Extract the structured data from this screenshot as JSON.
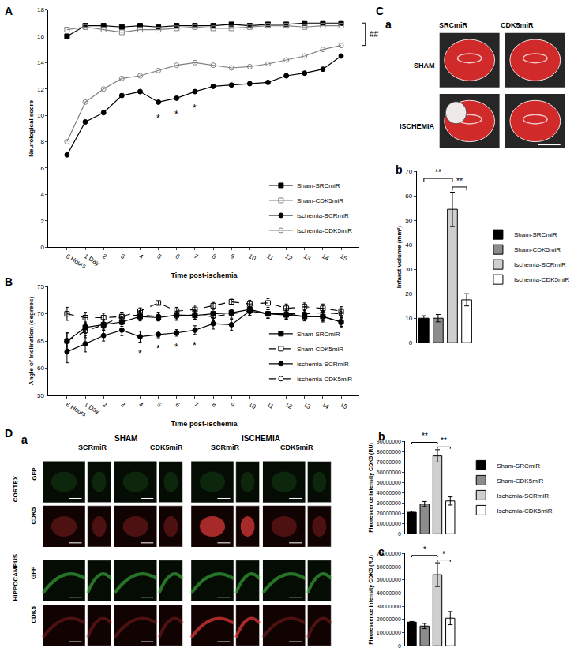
{
  "chart_data": [
    {
      "panel": "A",
      "type": "line",
      "x_label": "Time post-ischemia",
      "y_label": "Neurological score",
      "categories": [
        "6 Hours",
        "1 Day",
        "2",
        "3",
        "4",
        "5",
        "6",
        "7",
        "8",
        "9",
        "10",
        "11",
        "12",
        "13",
        "14",
        "15"
      ],
      "ylim": [
        0,
        18
      ],
      "yticks": [
        0,
        2,
        4,
        6,
        8,
        10,
        12,
        14,
        16,
        18
      ],
      "grid": false,
      "legend": "lower right",
      "series": [
        {
          "name": "Sham-SRCmiR",
          "color": "#000000",
          "marker": "square",
          "line_style": "solid",
          "values": [
            16,
            16.8,
            16.8,
            16.7,
            16.8,
            16.7,
            16.8,
            16.8,
            16.8,
            16.9,
            16.8,
            16.9,
            16.9,
            17,
            17,
            17
          ]
        },
        {
          "name": "Sham-CDK5miR",
          "color": "#808080",
          "marker": "square-open",
          "line_style": "solid",
          "values": [
            16.5,
            16.7,
            16.5,
            16.3,
            16.5,
            16.5,
            16.6,
            16.7,
            16.6,
            16.6,
            16.7,
            16.8,
            16.8,
            16.7,
            16.8,
            16.8
          ]
        },
        {
          "name": "Ischemia-SCRmiR",
          "color": "#000000",
          "marker": "circle",
          "line_style": "solid",
          "values": [
            7,
            9.5,
            10.2,
            11.5,
            11.8,
            11,
            11.3,
            11.8,
            12.2,
            12.3,
            12.4,
            12.5,
            13,
            13.2,
            13.5,
            14.5
          ]
        },
        {
          "name": "Ischemia-CDK5miR",
          "color": "#808080",
          "marker": "circle-open",
          "line_style": "solid",
          "values": [
            8,
            11,
            12,
            12.8,
            13,
            13.4,
            13.8,
            14,
            13.8,
            13.6,
            13.7,
            13.9,
            14.2,
            14.5,
            15,
            15.3
          ]
        }
      ],
      "annotations": [
        {
          "x": "5",
          "text": "*"
        },
        {
          "x": "6",
          "text": "*"
        },
        {
          "x": "7",
          "text": "*"
        }
      ],
      "significance": [
        {
          "from": "Sham-SRCmiR",
          "to": "Ischemia-CDK5miR",
          "text": "##"
        }
      ]
    },
    {
      "panel": "B",
      "type": "line",
      "x_label": "Time post-ischemia",
      "y_label": "Angle of Inclination (degrees)",
      "categories": [
        "6 Hours",
        "1 Day",
        "2",
        "3",
        "4",
        "5",
        "6",
        "7",
        "8",
        "9",
        "10",
        "11",
        "12",
        "13",
        "14",
        "15"
      ],
      "ylim": [
        55,
        75
      ],
      "yticks": [
        55,
        60,
        65,
        70,
        75
      ],
      "grid": false,
      "legend": "lower right",
      "series": [
        {
          "name": "Sham-SRCmiR",
          "color": "#000000",
          "marker": "square",
          "line_style": "solid",
          "values": [
            65,
            67.5,
            68,
            68.5,
            69.5,
            69.3,
            69.8,
            69.7,
            70,
            70.2,
            70.8,
            70,
            69.8,
            69.5,
            69.5,
            68.5
          ],
          "errors": [
            1.5,
            1,
            0.8,
            0.8,
            0.8,
            0.6,
            0.7,
            0.8,
            0.8,
            0.6,
            0.8,
            0.8,
            0.8,
            0.7,
            0.8,
            0.8
          ]
        },
        {
          "name": "Sham-CDK5miR",
          "color": "#000000",
          "marker": "square-open",
          "line_style": "dash",
          "values": [
            70,
            69.3,
            69.3,
            69.5,
            70.5,
            72,
            70.5,
            70.8,
            71.5,
            72.2,
            71.8,
            72,
            71,
            71.3,
            71,
            70.5
          ],
          "errors": [
            1.2,
            1,
            0.8,
            0.8,
            0.6,
            0.3,
            0.7,
            0.8,
            0.6,
            0.5,
            0.7,
            0.8,
            0.8,
            0.7,
            0.8,
            0.8
          ]
        },
        {
          "name": "Ischemia-SCRmiR",
          "color": "#000000",
          "marker": "circle",
          "line_style": "solid",
          "values": [
            63,
            64.5,
            66,
            67,
            65.8,
            66.2,
            66.5,
            67,
            68.2,
            68,
            70.5,
            70,
            70,
            69.5,
            69.5,
            68.5
          ],
          "errors": [
            2,
            1.5,
            1,
            1,
            1,
            0.6,
            0.6,
            0.8,
            1,
            1,
            0.8,
            0.8,
            1,
            0.8,
            1,
            1
          ]
        },
        {
          "name": "Ischemia-CDK5miR",
          "color": "#000000",
          "marker": "circle-open",
          "line_style": "dash",
          "values": [
            65,
            66.8,
            68,
            69.5,
            69.8,
            69.5,
            69.6,
            69.8,
            69.5,
            70,
            70.5,
            70,
            70,
            70,
            70.2,
            70
          ],
          "errors": [
            1.5,
            1.2,
            1,
            0.8,
            0.8,
            0.8,
            0.8,
            0.8,
            0.8,
            0.8,
            0.8,
            0.8,
            0.8,
            0.8,
            0.8,
            0.8
          ]
        }
      ],
      "annotations": [
        {
          "x": "4",
          "text": "*"
        },
        {
          "x": "5",
          "text": "*"
        },
        {
          "x": "6",
          "text": "*"
        },
        {
          "x": "7",
          "text": "*"
        }
      ]
    },
    {
      "panel": "b",
      "type": "bar",
      "y_label": "Infarct volume (mm³)",
      "categories": [
        "Sham-SRCmiR",
        "Sham-CDK5miR",
        "Ischemia-SCRmiR",
        "Ischemia-CDK5miR"
      ],
      "values": [
        10,
        10,
        54.5,
        17.5
      ],
      "errors": [
        1,
        1.5,
        7,
        2.5
      ],
      "colors": [
        "#000000",
        "#8c8c8c",
        "#cfcfcf",
        "#ffffff"
      ],
      "ylim": [
        0,
        70
      ],
      "yticks": [
        0,
        10,
        20,
        30,
        40,
        50,
        60,
        70
      ],
      "tick_labels": "y",
      "grid": false,
      "legend": "right",
      "significance": [
        {
          "from": "Sham-SRCmiR",
          "to": "Ischemia-SCRmiR",
          "text": "**"
        },
        {
          "from": "Ischemia-SCRmiR",
          "to": "Ischemia-CDK5miR",
          "text": "**"
        }
      ]
    },
    {
      "panel": "b",
      "type": "bar",
      "y_label": "Fluorescence intensity CDK5 (RU)",
      "categories": [
        "Sham-SRCmiR",
        "Sham-CDK5miR",
        "Ischemia-SCRmiR",
        "Ischemia-CDK5miR"
      ],
      "values": [
        21000000,
        29000000,
        76000000,
        32000000
      ],
      "errors": [
        1000000,
        2500000,
        6000000,
        4000000
      ],
      "colors": [
        "#000000",
        "#8c8c8c",
        "#cfcfcf",
        "#ffffff"
      ],
      "ylim": [
        0,
        90000000
      ],
      "yticks": [
        0,
        10000000,
        20000000,
        30000000,
        40000000,
        50000000,
        60000000,
        70000000,
        80000000,
        90000000
      ],
      "tick_labels": "y",
      "grid": false,
      "legend": "right",
      "significance": [
        {
          "from": "Sham-SRCmiR",
          "to": "Ischemia-SCRmiR",
          "text": "**"
        },
        {
          "from": "Ischemia-SCRmiR",
          "to": "Ischemia-CDK5miR",
          "text": "**"
        }
      ]
    },
    {
      "panel": "c",
      "type": "bar",
      "y_label": "Fluorescence intensity CDK5 (RU)",
      "categories": [
        "Sham-SRCmiR",
        "Sham-CDK5miR",
        "Ischemia-SCRmiR",
        "Ischemia-CDK5miR"
      ],
      "values": [
        18000000,
        15000000,
        54000000,
        21000000
      ],
      "errors": [
        500000,
        2000000,
        9000000,
        5000000
      ],
      "colors": [
        "#000000",
        "#8c8c8c",
        "#cfcfcf",
        "#ffffff"
      ],
      "ylim": [
        0,
        70000000
      ],
      "yticks": [
        0,
        10000000,
        20000000,
        30000000,
        40000000,
        50000000,
        60000000,
        70000000
      ],
      "tick_labels": "y",
      "grid": false,
      "significance": [
        {
          "from": "Sham-SRCmiR",
          "to": "Ischemia-SCRmiR",
          "text": "*"
        },
        {
          "from": "Ischemia-SCRmiR",
          "to": "Ischemia-CDK5miR",
          "text": "*"
        }
      ]
    }
  ],
  "images": [
    {
      "panel": "C",
      "subpanel": "a",
      "columns": [
        "SRCmiR",
        "CDK5miR"
      ],
      "rows": [
        "SHAM",
        "ISCHEMIA"
      ]
    },
    {
      "panel": "D",
      "subpanel": "a",
      "groups": [
        "SHAM",
        "ISCHEMIA"
      ],
      "columns": [
        "SCRmiR",
        "CDK5miR"
      ],
      "regions": [
        "CORTEX",
        "HIPPOCAMPUS"
      ],
      "channels": [
        "GFP",
        "CDK5"
      ]
    }
  ]
}
